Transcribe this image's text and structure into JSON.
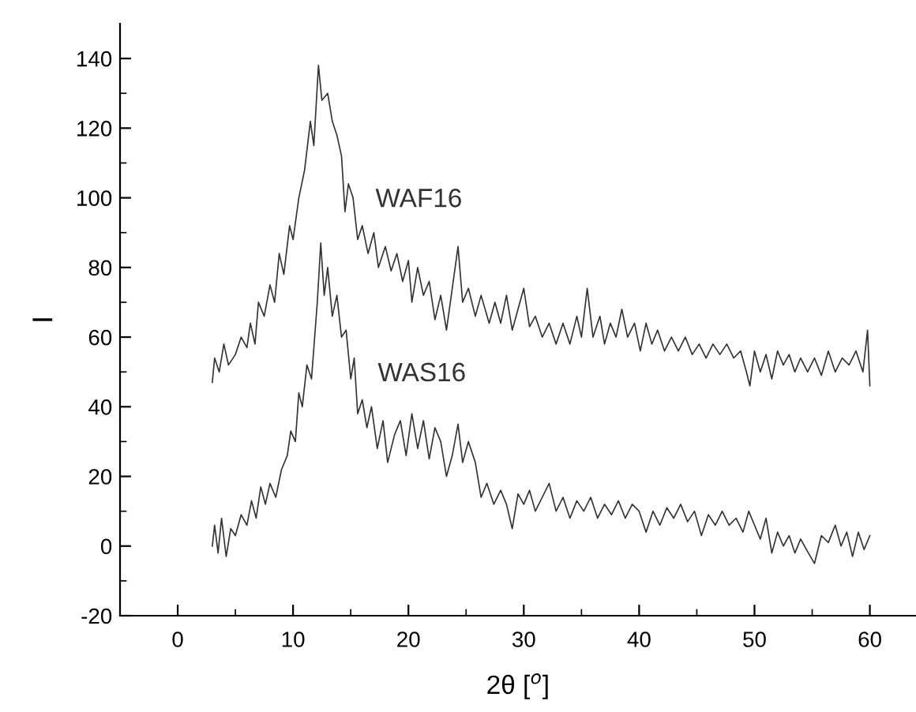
{
  "chart_data": {
    "type": "line",
    "xlabel": "2θ [$^{o}$]",
    "ylabel": "I",
    "xlim": [
      -5,
      64
    ],
    "ylim": [
      -20,
      150
    ],
    "xticks": [
      {
        "value": -5,
        "label": null
      },
      0,
      {
        "value": 5,
        "label": null
      },
      10,
      {
        "value": 15,
        "label": null
      },
      20,
      {
        "value": 25,
        "label": null
      },
      30,
      {
        "value": 35,
        "label": null
      },
      40,
      {
        "value": 45,
        "label": null
      },
      50,
      {
        "value": 55,
        "label": null
      },
      60
    ],
    "yticks": [
      -20,
      {
        "value": -10,
        "label": null
      },
      0,
      {
        "value": 10,
        "label": null
      },
      20,
      {
        "value": 30,
        "label": null
      },
      40,
      {
        "value": 50,
        "label": null
      },
      60,
      {
        "value": 70,
        "label": null
      },
      80,
      {
        "value": 90,
        "label": null
      },
      100,
      {
        "value": 110,
        "label": null
      },
      120,
      {
        "value": 130,
        "label": null
      },
      140
    ],
    "grid": false,
    "legend": false,
    "marker": "none",
    "line_style": "solid",
    "series": [
      {
        "name": "WAF16",
        "color": "#333333",
        "x": [
          3,
          3.2,
          3.6,
          4,
          4.4,
          5,
          5.5,
          6,
          6.3,
          6.7,
          7,
          7.5,
          8,
          8.4,
          8.8,
          9.2,
          9.7,
          10,
          10.5,
          11,
          11.5,
          11.8,
          12.2,
          12.5,
          13,
          13.4,
          13.8,
          14.2,
          14.5,
          14.8,
          15.2,
          15.6,
          16,
          16.5,
          17,
          17.4,
          18,
          18.5,
          19,
          19.5,
          20,
          20.3,
          20.8,
          21.3,
          21.8,
          22.3,
          22.8,
          23.3,
          23.8,
          24.3,
          24.7,
          25.2,
          25.8,
          26.3,
          27,
          27.5,
          28,
          28.5,
          29,
          29.5,
          30,
          30.5,
          31,
          31.6,
          32.2,
          32.8,
          33.4,
          34,
          34.6,
          35,
          35.5,
          36,
          36.6,
          37,
          37.5,
          38,
          38.5,
          39,
          39.6,
          40.1,
          40.6,
          41.1,
          41.6,
          42.2,
          42.8,
          43.4,
          44,
          44.6,
          45.2,
          45.8,
          46.4,
          47,
          47.6,
          48.2,
          48.8,
          49.3,
          49.6,
          50,
          50.5,
          51,
          51.5,
          52,
          52.5,
          53,
          53.5,
          54,
          54.6,
          55.2,
          55.8,
          56.4,
          57,
          57.6,
          58.2,
          58.8,
          59.4,
          59.8,
          60
        ],
        "values": [
          47,
          54,
          50,
          58,
          52,
          55,
          60,
          57,
          64,
          58,
          70,
          66,
          75,
          70,
          84,
          78,
          92,
          88,
          100,
          108,
          122,
          115,
          138,
          128,
          130,
          122,
          118,
          112,
          96,
          104,
          100,
          88,
          92,
          84,
          90,
          80,
          86,
          79,
          84,
          76,
          82,
          70,
          80,
          72,
          76,
          65,
          72,
          62,
          74,
          86,
          70,
          74,
          66,
          72,
          64,
          70,
          64,
          72,
          62,
          68,
          74,
          63,
          66,
          60,
          64,
          58,
          64,
          58,
          66,
          60,
          74,
          60,
          66,
          58,
          64,
          60,
          68,
          60,
          64,
          56,
          64,
          58,
          62,
          56,
          60,
          56,
          60,
          55,
          58,
          54,
          58,
          55,
          58,
          54,
          56,
          50,
          46,
          56,
          50,
          55,
          48,
          56,
          52,
          55,
          50,
          54,
          50,
          54,
          49,
          56,
          50,
          54,
          52,
          56,
          50,
          62,
          46
        ]
      },
      {
        "name": "WAS16",
        "color": "#333333",
        "x": [
          3,
          3.2,
          3.5,
          3.8,
          4.2,
          4.6,
          5,
          5.5,
          6,
          6.4,
          6.8,
          7.2,
          7.6,
          8,
          8.5,
          9,
          9.5,
          9.8,
          10.2,
          10.5,
          10.8,
          11.2,
          11.6,
          12.1,
          12.4,
          12.7,
          13,
          13.4,
          13.8,
          14.2,
          14.6,
          15,
          15.3,
          15.6,
          16,
          16.4,
          16.8,
          17.3,
          17.8,
          18.2,
          18.8,
          19.3,
          19.8,
          20.3,
          20.8,
          21.3,
          21.8,
          22.3,
          22.8,
          23.3,
          23.8,
          24.3,
          24.7,
          25.2,
          25.8,
          26.3,
          26.8,
          27.4,
          28,
          28.5,
          29,
          29.5,
          30,
          30.5,
          31,
          31.6,
          32.2,
          32.8,
          33.4,
          34,
          34.6,
          35.2,
          35.8,
          36.4,
          37,
          37.6,
          38.2,
          38.8,
          39.4,
          40,
          40.6,
          41.2,
          41.8,
          42.4,
          43,
          43.6,
          44.2,
          44.8,
          45.4,
          46,
          46.6,
          47.2,
          47.8,
          48.4,
          49,
          49.5,
          50,
          50.5,
          51,
          51.5,
          52,
          52.5,
          53,
          53.5,
          54,
          54.5,
          55.2,
          55.8,
          56.4,
          57,
          57.5,
          58,
          58.5,
          59,
          59.5,
          60
        ],
        "values": [
          0,
          6,
          -2,
          8,
          -3,
          5,
          3,
          9,
          6,
          13,
          8,
          17,
          12,
          18,
          14,
          22,
          26,
          33,
          30,
          44,
          40,
          52,
          48,
          70,
          87,
          72,
          80,
          66,
          72,
          60,
          62,
          48,
          54,
          38,
          42,
          34,
          40,
          28,
          36,
          24,
          32,
          36,
          26,
          38,
          28,
          36,
          25,
          34,
          30,
          20,
          26,
          35,
          24,
          30,
          24,
          14,
          18,
          12,
          16,
          12,
          5,
          15,
          12,
          16,
          10,
          14,
          18,
          10,
          14,
          8,
          13,
          10,
          14,
          8,
          12,
          9,
          13,
          8,
          12,
          10,
          4,
          10,
          6,
          11,
          8,
          12,
          7,
          10,
          3,
          9,
          6,
          10,
          6,
          8,
          4,
          10,
          6,
          2,
          8,
          -2,
          4,
          0,
          3,
          -2,
          2,
          -1,
          -5,
          3,
          1,
          6,
          0,
          4,
          -3,
          4,
          -1,
          3
        ]
      }
    ]
  }
}
